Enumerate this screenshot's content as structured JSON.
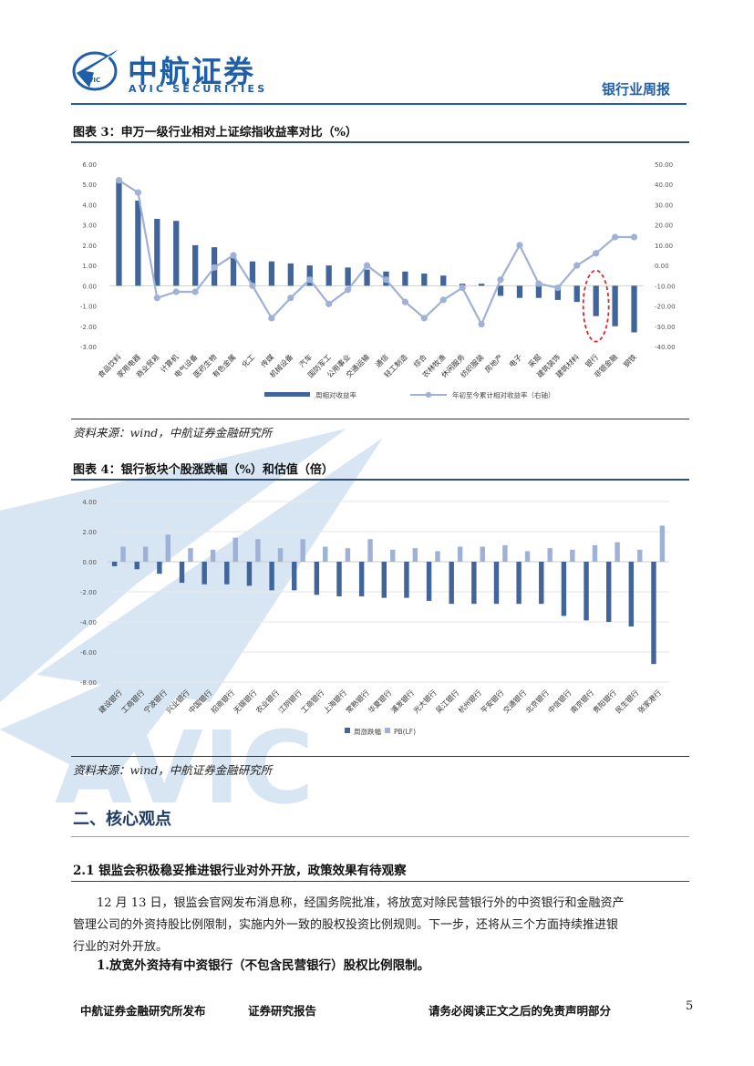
{
  "header": {
    "logo_cn": "中航证券",
    "logo_en": "AVIC SECURITIES",
    "report_type": "银行业周报"
  },
  "watermark": {
    "text": "AVIC"
  },
  "figure3": {
    "title": "图表 3：申万一级行业相对上证综指收益率对比（%）",
    "source": "资料来源：wind，中航证券金融研究所",
    "chart_data": {
      "type": "bar",
      "categories": [
        "食品饮料",
        "家用电器",
        "商业贸易",
        "计算机",
        "电气设备",
        "医药生物",
        "有色金属",
        "化工",
        "传媒",
        "机械设备",
        "汽车",
        "国防军工",
        "公用事业",
        "交通运输",
        "通信",
        "轻工制造",
        "综合",
        "农林牧渔",
        "休闲服务",
        "纺织服装",
        "房地产",
        "电子",
        "采掘",
        "建筑装饰",
        "建筑材料",
        "银行",
        "非银金融",
        "钢铁"
      ],
      "series": [
        {
          "name": "周相对收益率",
          "type": "bar",
          "axis": "left",
          "values": [
            5.3,
            4.2,
            3.3,
            3.2,
            2.0,
            1.9,
            1.4,
            1.2,
            1.2,
            1.1,
            1.0,
            1.0,
            0.9,
            0.8,
            0.7,
            0.7,
            0.6,
            0.5,
            0.1,
            0.1,
            -0.5,
            -0.6,
            -0.6,
            -0.7,
            -0.8,
            -1.5,
            -2.0,
            -2.3
          ]
        },
        {
          "name": "年初至今累计相对收益率（右轴）",
          "type": "line",
          "axis": "right",
          "values": [
            42,
            36,
            -16,
            -13,
            -13,
            -1,
            5,
            -10,
            -26,
            -16,
            -7,
            -19,
            -12,
            0,
            -7,
            -18,
            -26,
            -17,
            -11,
            -29,
            -7,
            10,
            -9,
            -11,
            0,
            6,
            14,
            14
          ]
        }
      ],
      "ylim_left": [
        -3,
        6
      ],
      "ylim_right": [
        -40,
        50
      ],
      "yticks_left": [
        "6.00",
        "5.00",
        "4.00",
        "3.00",
        "2.00",
        "1.00",
        "0.00",
        "-1.00",
        "-2.00",
        "-3.00"
      ],
      "yticks_right": [
        "50.00",
        "40.00",
        "30.00",
        "20.00",
        "10.00",
        "0.00",
        "-10.00",
        "-20.00",
        "-30.00",
        "-40.00"
      ],
      "legend_position": "bottom",
      "highlight": "银行"
    }
  },
  "figure4": {
    "title": "图表 4：银行板块个股涨跌幅（%）和估值（倍）",
    "source": "资料来源：wind，中航证券金融研究所",
    "chart_data": {
      "type": "bar",
      "categories": [
        "建设银行",
        "工商银行",
        "宁波银行",
        "兴业银行",
        "中国银行",
        "招商银行",
        "无锡银行",
        "农业银行",
        "江阴银行",
        "工商银行",
        "上海银行",
        "常熟银行",
        "华夏银行",
        "浦发银行",
        "光大银行",
        "吴江银行",
        "杭州银行",
        "平安银行",
        "交通银行",
        "北京银行",
        "中信银行",
        "南京银行",
        "贵阳银行",
        "民生银行",
        "张家港行"
      ],
      "series": [
        {
          "name": "周涨跌幅",
          "values": [
            -0.3,
            -0.5,
            -0.8,
            -1.4,
            -1.5,
            -1.5,
            -1.6,
            -1.9,
            -1.9,
            -2.2,
            -2.3,
            -2.3,
            -2.4,
            -2.4,
            -2.6,
            -2.8,
            -2.8,
            -2.8,
            -2.8,
            -2.8,
            -3.6,
            -3.9,
            -4.0,
            -4.3,
            -6.8
          ]
        },
        {
          "name": "PB(LF)",
          "values": [
            1.0,
            1.0,
            1.8,
            0.9,
            0.8,
            1.6,
            1.5,
            0.9,
            1.5,
            1.0,
            0.9,
            1.5,
            0.8,
            0.9,
            0.7,
            1.0,
            1.0,
            1.1,
            0.7,
            0.9,
            0.8,
            1.1,
            1.3,
            0.8,
            2.4
          ]
        }
      ],
      "ylim": [
        -8,
        4
      ],
      "yticks": [
        "4.00",
        "2.00",
        "0.00",
        "-2.00",
        "-4.00",
        "-6.00",
        "-8.00"
      ],
      "legend_position": "bottom"
    }
  },
  "section": {
    "heading": "二、核心观点",
    "subheading": "2.1 银监会积极稳妥推进银行业对外开放，政策效果有待观察",
    "para_lines": [
      "12 月 13 日，银监会官网发布消息称，经国务院批准，将放宽对除民营银行外的中资银行和金融资产",
      "管理公司的外资持股比例限制，实施内外一致的股权投资比例规则。下一步，还将从三个方面持续推进银",
      "行业的对外开放。"
    ],
    "point1": "1.放宽外资持有中资银行（不包含民营银行）股权比例限制。"
  },
  "footer": {
    "left": "中航证券金融研究所发布",
    "middle": "证券研究报告",
    "right": "请务必阅读正文之后的免责声明部分",
    "page": "5"
  },
  "colors": {
    "bar_dark": "#41659a",
    "bar_light": "#9fb1d6",
    "line": "#9fb1d6",
    "brand_blue": "#1f5fa8",
    "rule": "#2e4d7a",
    "highlight": "#d62b2b"
  }
}
